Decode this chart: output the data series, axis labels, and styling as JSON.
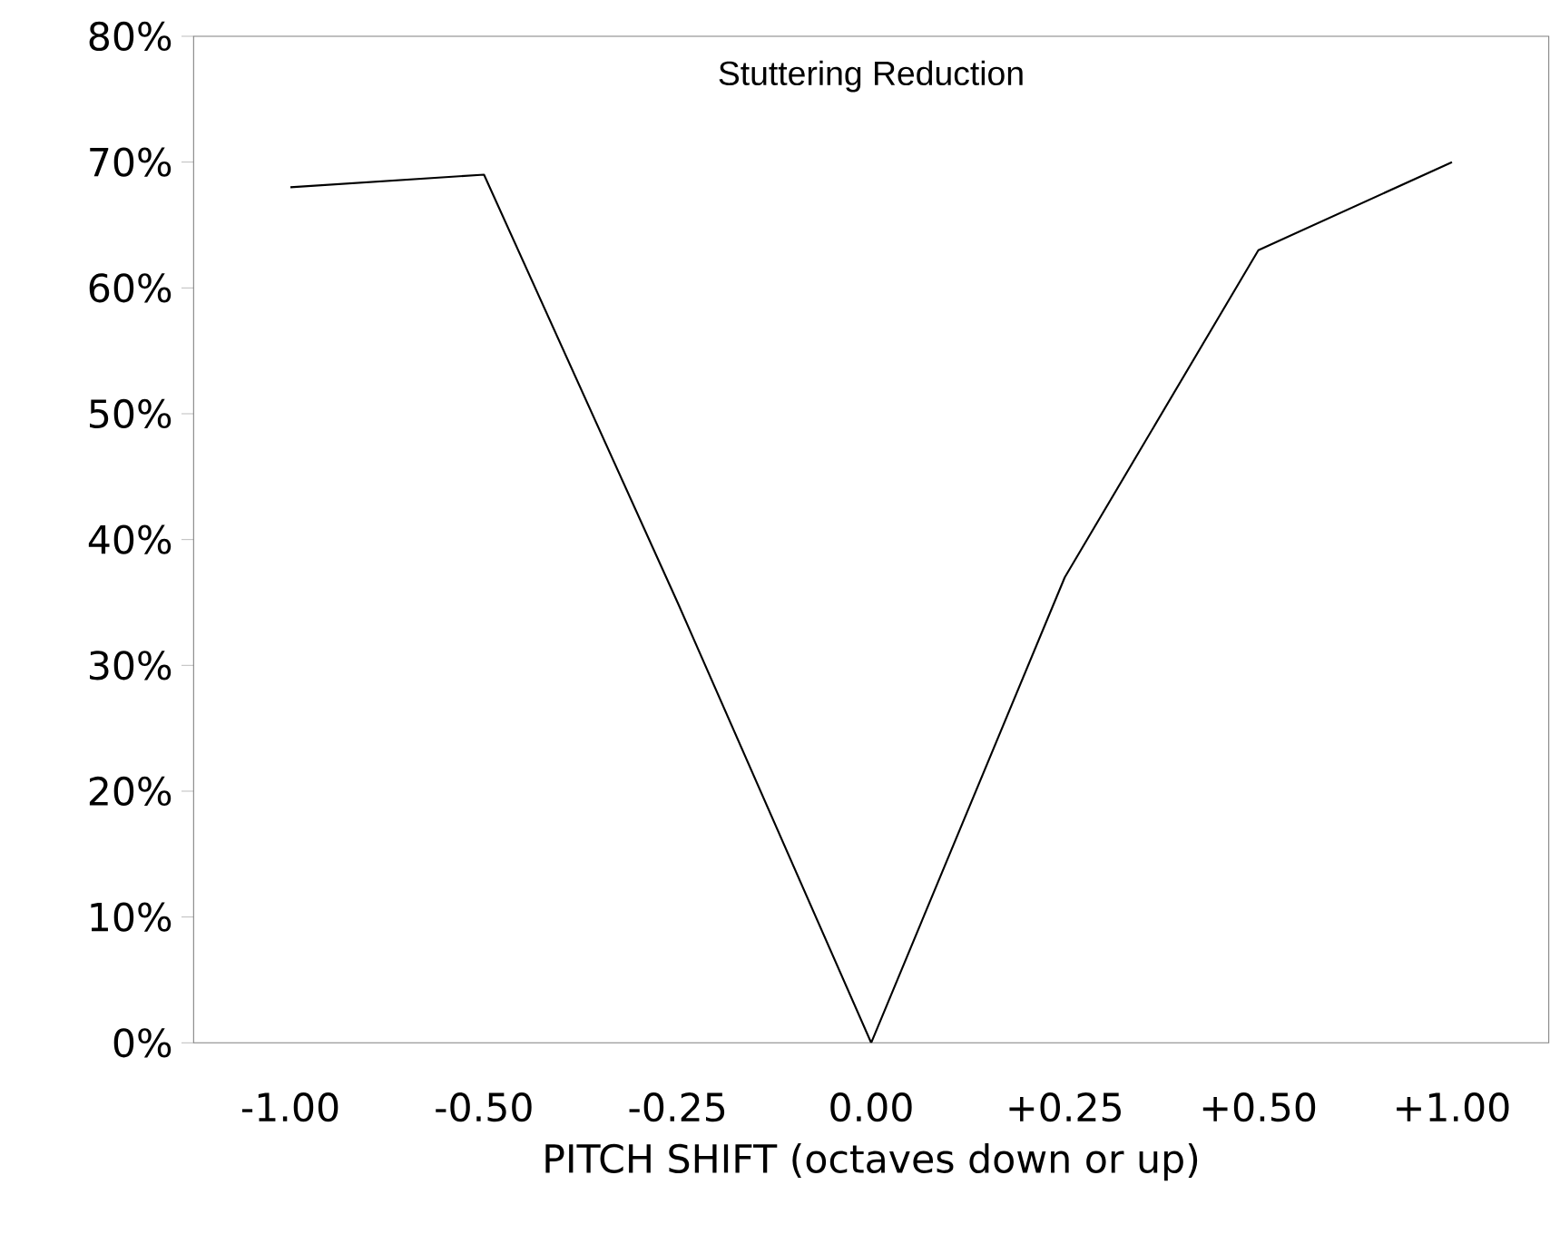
{
  "chart_data": {
    "type": "line",
    "title": "Stuttering Reduction",
    "xlabel": "PITCH SHIFT (octaves down or up)",
    "categories": [
      "-1.00",
      "-0.50",
      "-0.25",
      "0.00",
      "+0.25",
      "+0.50",
      "+1.00"
    ],
    "series": [
      {
        "color": "#000000",
        "values": [
          68,
          69,
          35,
          0,
          37,
          63,
          70
        ]
      }
    ],
    "ylim": [
      0,
      80
    ],
    "yticks": [
      {
        "value": 0,
        "label": "0%"
      },
      {
        "value": 10,
        "label": "10%"
      },
      {
        "value": 20,
        "label": "20%"
      },
      {
        "value": 30,
        "label": "30%"
      },
      {
        "value": 40,
        "label": "40%"
      },
      {
        "value": 50,
        "label": "50%"
      },
      {
        "value": 60,
        "label": "60%"
      },
      {
        "value": 70,
        "label": "70%"
      },
      {
        "value": 80,
        "label": "80%"
      }
    ],
    "marker": "none",
    "line_style": "solid"
  }
}
